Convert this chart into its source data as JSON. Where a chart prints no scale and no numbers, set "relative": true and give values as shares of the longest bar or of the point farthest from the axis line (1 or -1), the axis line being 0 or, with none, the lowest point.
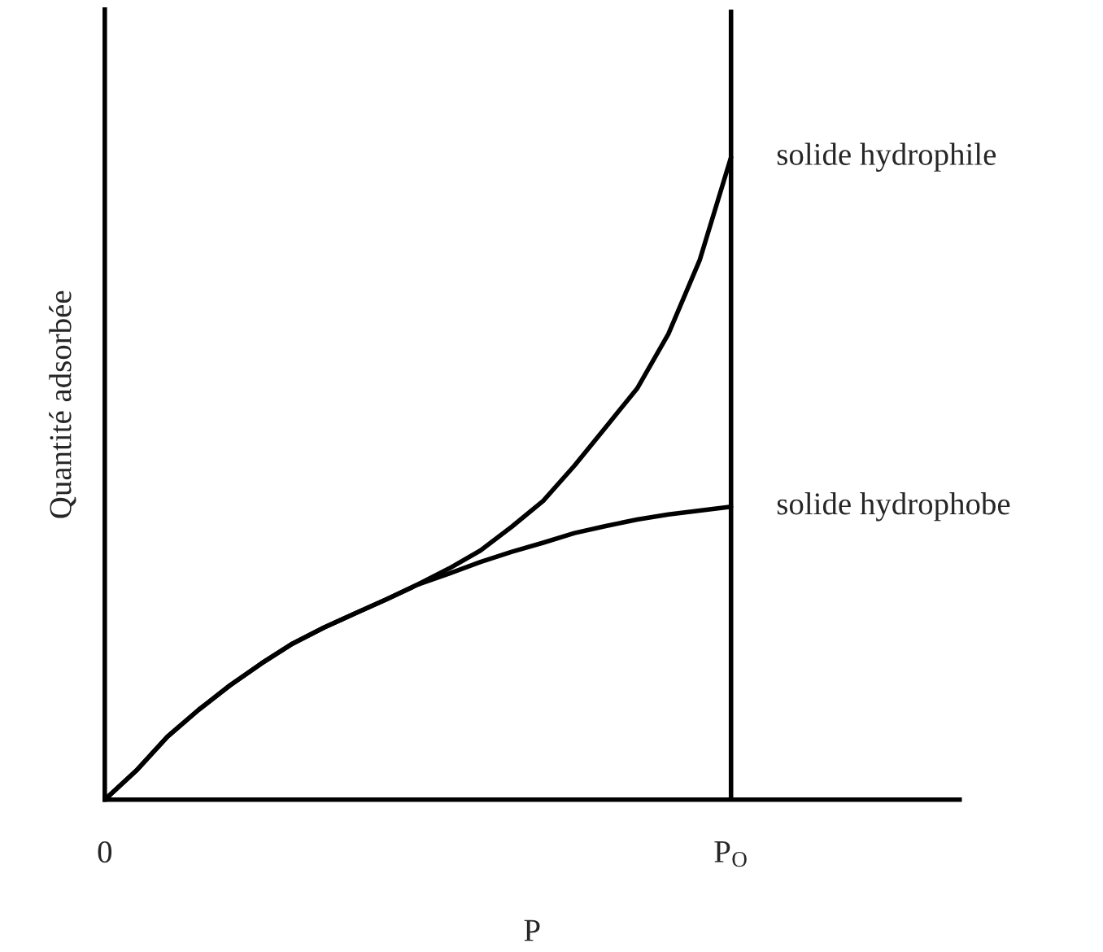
{
  "chart_data": {
    "type": "line",
    "relative": true,
    "xlabel": "P",
    "ylabel": "Quantité adsorbée",
    "categories": [
      "0",
      null,
      null,
      null,
      null,
      null,
      null,
      null,
      null,
      null,
      null,
      null,
      null,
      null,
      null,
      null,
      null,
      null,
      null,
      null,
      "P$_{O}$",
      null,
      null,
      null,
      null,
      null,
      null,
      null
    ],
    "grid": false,
    "legend": false,
    "marker": "none",
    "line_style": "solid",
    "ref_lines": [
      {
        "axis": "x",
        "value": "P$_{O}$",
        "color": "#000000"
      }
    ],
    "series": [
      {
        "name": "solide hydrophile",
        "color": "#000000",
        "values": [
          0,
          0.045,
          0.098,
          0.14,
          0.178,
          0.212,
          0.243,
          0.268,
          0.29,
          0.312,
          0.335,
          0.36,
          0.388,
          0.425,
          0.465,
          0.52,
          0.58,
          0.64,
          0.725,
          0.84,
          1,
          null,
          null,
          null,
          null,
          null,
          null,
          null
        ]
      },
      {
        "name": "solide hydrophobe",
        "color": "#000000",
        "values": [
          0,
          0.045,
          0.098,
          0.14,
          0.178,
          0.212,
          0.243,
          0.268,
          0.29,
          0.312,
          0.335,
          0.352,
          0.37,
          0.386,
          0.4,
          0.415,
          0.426,
          0.436,
          0.444,
          0.45,
          0.456,
          null,
          null,
          null,
          null,
          null,
          null,
          null
        ]
      }
    ]
  }
}
